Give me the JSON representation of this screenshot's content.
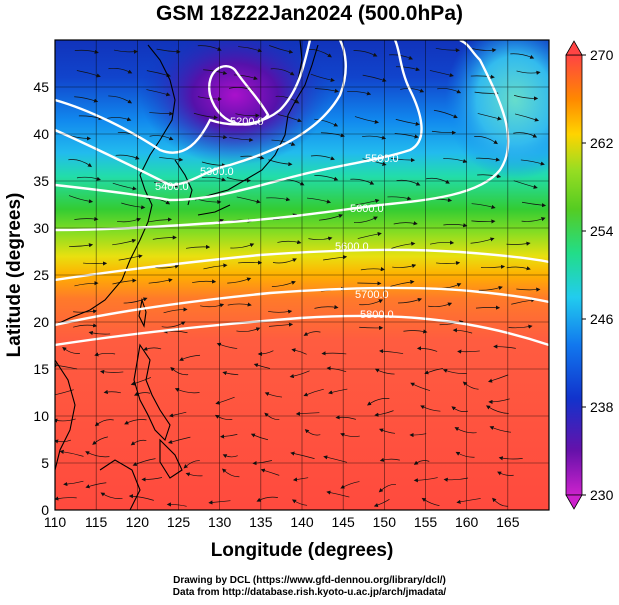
{
  "title": "GSM 18Z22Jan2024 (500.0hPa)",
  "credits": {
    "line1": "Drawing by DCL (https://www.gfd-dennou.org/library/dcl/)",
    "line2": "Data from http://database.rish.kyoto-u.ac.jp/arch/jmadata/"
  },
  "chart_data": {
    "type": "heatmap",
    "title": "GSM 18Z22Jan2024 (500.0hPa)",
    "xlabel": "Longitude (degrees)",
    "ylabel": "Latitude  (degrees)",
    "xlim": [
      110,
      170
    ],
    "ylim": [
      0,
      50
    ],
    "x_ticks": [
      110,
      115,
      120,
      125,
      130,
      135,
      140,
      145,
      150,
      155,
      160,
      165
    ],
    "y_ticks": [
      0,
      5,
      10,
      15,
      20,
      25,
      30,
      35,
      40,
      45
    ],
    "grid": true,
    "colorbar": {
      "variable": "temperature",
      "min": 230,
      "max": 270,
      "tick_labels": [
        "270",
        "262",
        "254",
        "246",
        "238",
        "230"
      ],
      "tick_values": [
        270,
        262,
        254,
        246,
        238,
        230
      ],
      "colors": [
        "#ff4444",
        "#ff9900",
        "#ffd400",
        "#55cc22",
        "#22ddaa",
        "#22aaee",
        "#1144dd",
        "#5511aa",
        "#cc22cc"
      ]
    },
    "contours": {
      "variable": "geopotential height",
      "labels": [
        "5200.0",
        "5300.0",
        "5400.0",
        "5500.0",
        "5600.0",
        "5600.0",
        "5700.0",
        "5800.0"
      ],
      "levels": [
        5200,
        5300,
        5400,
        5500,
        5600,
        5700,
        5800
      ]
    },
    "overlay": "streamlines (wind)"
  }
}
